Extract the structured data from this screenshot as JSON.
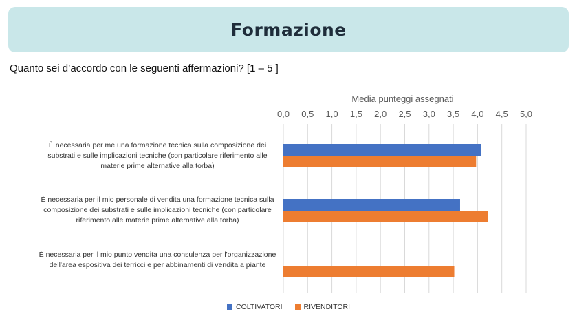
{
  "banner": {
    "title": "Formazione"
  },
  "question": "Quanto sei d’accordo con le seguenti affermazioni? [1 – 5 ]",
  "colors": {
    "banner_bg": "#c9e7e9",
    "coltivatori": "#4472c4",
    "rivenditori": "#ed7d31",
    "grid": "#d9d9d9"
  },
  "chart_data": {
    "type": "bar",
    "orientation": "horizontal",
    "title": "Media punteggi assegnati",
    "xlim": [
      0,
      5
    ],
    "ticks": [
      "0,0",
      "0,5",
      "1,0",
      "1,5",
      "2,0",
      "2,5",
      "3,0",
      "3,5",
      "4,0",
      "4,5",
      "5,0"
    ],
    "tick_values": [
      0,
      0.5,
      1,
      1.5,
      2,
      2.5,
      3,
      3.5,
      4,
      4.5,
      5
    ],
    "axis_position": "top",
    "grid": true,
    "legend_position": "bottom",
    "categories": [
      "È necessaria per me una formazione tecnica sulla composizione dei substrati e sulle implicazioni tecniche (con particolare riferimento alle materie prime alternative alla torba)",
      "È necessaria per il mio personale di vendita una formazione tecnica sulla composizione dei substrati e sulle implicazioni tecniche (con particolare riferimento alle materie prime alternative alla torba)",
      "È necessaria per il mio punto vendita una consulenza per l'organizzazione dell'area espositiva dei terricci e per abbinamenti di vendita a piante"
    ],
    "series": [
      {
        "name": "COLTIVATORI",
        "values": [
          4.07,
          3.64,
          null
        ]
      },
      {
        "name": "RIVENDITORI",
        "values": [
          3.97,
          4.22,
          3.52
        ]
      }
    ]
  }
}
